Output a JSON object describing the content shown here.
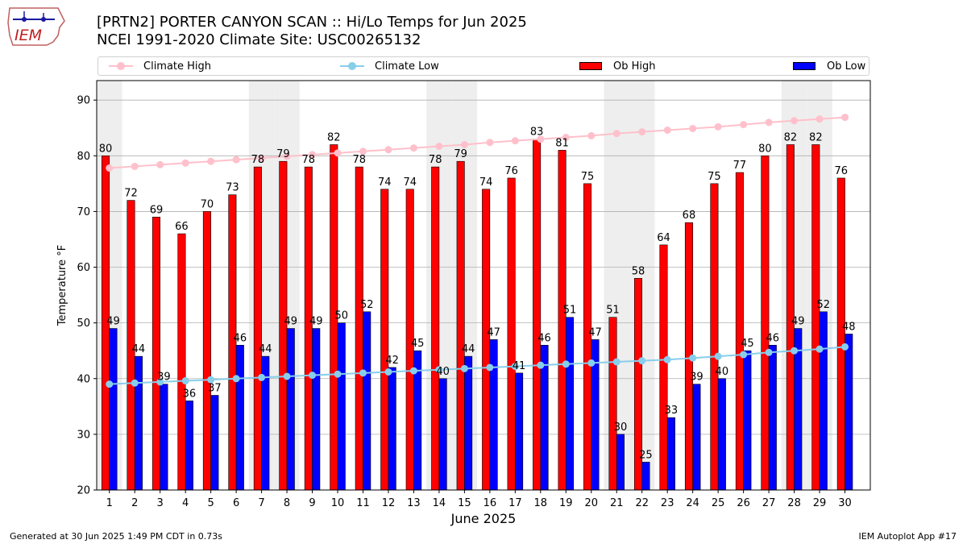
{
  "header": {
    "logo_text": "IEM",
    "title_line1": "[PRTN2] PORTER CANYON SCAN :: Hi/Lo Temps for Jun 2025",
    "title_line2": "NCEI 1991-2020 Climate Site: USC00265132"
  },
  "legend": {
    "climate_high": "Climate High",
    "climate_low": "Climate Low",
    "ob_high": "Ob High",
    "ob_low": "Ob Low"
  },
  "colors": {
    "climate_high": "#ffc0cb",
    "climate_low": "#87ceeb",
    "ob_high": "#ff0000",
    "ob_low": "#0000ff",
    "weekend_shade": "#eeeeee",
    "grid": "#b0b0b0"
  },
  "chart_data": {
    "type": "bar",
    "xlabel": "June 2025",
    "ylabel": "Temperature °F",
    "ylim": [
      20,
      93.5
    ],
    "yticks": [
      20,
      30,
      40,
      50,
      60,
      70,
      80,
      90
    ],
    "grid": "horizontal",
    "legend_position": "top",
    "categories": [
      "1",
      "2",
      "3",
      "4",
      "5",
      "6",
      "7",
      "8",
      "9",
      "10",
      "11",
      "12",
      "13",
      "14",
      "15",
      "16",
      "17",
      "18",
      "19",
      "20",
      "21",
      "22",
      "23",
      "24",
      "25",
      "26",
      "27",
      "28",
      "29",
      "30"
    ],
    "series": [
      {
        "name": "Ob High",
        "kind": "bar",
        "values": [
          80,
          72,
          69,
          66,
          70,
          73,
          78,
          79,
          78,
          82,
          78,
          74,
          74,
          78,
          79,
          74,
          76,
          83,
          81,
          75,
          51,
          58,
          64,
          68,
          75,
          77,
          80,
          82,
          82,
          76
        ]
      },
      {
        "name": "Ob Low",
        "kind": "bar",
        "values": [
          49,
          44,
          39,
          36,
          37,
          46,
          44,
          49,
          49,
          50,
          52,
          42,
          45,
          40,
          44,
          47,
          41,
          46,
          51,
          47,
          30,
          25,
          33,
          39,
          40,
          45,
          46,
          49,
          52,
          48
        ]
      },
      {
        "name": "Climate High",
        "kind": "line",
        "values": [
          77.8,
          78.1,
          78.4,
          78.7,
          79.0,
          79.3,
          79.6,
          79.9,
          80.2,
          80.5,
          80.8,
          81.1,
          81.4,
          81.7,
          82.0,
          82.4,
          82.7,
          83.0,
          83.3,
          83.6,
          84.0,
          84.3,
          84.6,
          84.9,
          85.2,
          85.6,
          86.0,
          86.3,
          86.6,
          86.9
        ]
      },
      {
        "name": "Climate Low",
        "kind": "line",
        "values": [
          39.0,
          39.2,
          39.4,
          39.6,
          39.8,
          40.0,
          40.2,
          40.4,
          40.6,
          40.8,
          41.0,
          41.2,
          41.4,
          41.6,
          41.8,
          42.0,
          42.2,
          42.4,
          42.6,
          42.8,
          43.0,
          43.2,
          43.4,
          43.7,
          44.0,
          44.3,
          44.7,
          45.0,
          45.3,
          45.7
        ]
      }
    ],
    "shaded_days": [
      1,
      7,
      8,
      14,
      15,
      21,
      22,
      28,
      29
    ]
  },
  "footer": {
    "generated": "Generated at 30 Jun 2025 1:49 PM CDT in 0.73s",
    "app": "IEM Autoplot App #17"
  }
}
